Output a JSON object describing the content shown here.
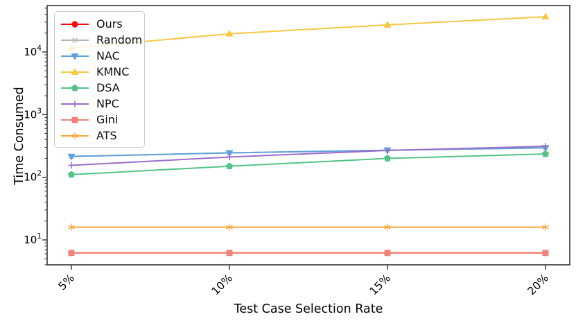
{
  "chart_data": {
    "type": "line",
    "title": "",
    "xlabel": "Test Case Selection Rate",
    "ylabel": "Time Consumed",
    "categories": [
      "5%",
      "10%",
      "15%",
      "20%"
    ],
    "yscale": "log",
    "ylim": [
      4,
      55000
    ],
    "y_major_ticks": [
      10,
      100,
      1000,
      10000
    ],
    "y_tick_exponents": [
      "1",
      "2",
      "3",
      "4"
    ],
    "y_tick_mantissa": "10",
    "grid": false,
    "legend_position": "upper-left",
    "axis_color": "#333333",
    "series": [
      {
        "name": "Ours",
        "color": "#f50d0d",
        "marker": "circle",
        "values": [
          6.2,
          6.2,
          6.2,
          6.2
        ]
      },
      {
        "name": "Random",
        "color": "#b5b5b5",
        "marker": "x",
        "values": [
          215,
          245,
          270,
          295
        ]
      },
      {
        "name": "NAC",
        "color": "#5fa2dc",
        "marker": "triangle-down",
        "values": [
          215,
          245,
          270,
          295
        ]
      },
      {
        "name": "KMNC",
        "color": "#f6c844",
        "marker": "triangle-up",
        "values": [
          11500,
          19500,
          27000,
          36500
        ]
      },
      {
        "name": "DSA",
        "color": "#55c387",
        "marker": "pentagon",
        "values": [
          110,
          150,
          200,
          235
        ]
      },
      {
        "name": "NPC",
        "color": "#9b6ec8",
        "marker": "plus",
        "values": [
          155,
          210,
          268,
          312
        ]
      },
      {
        "name": "Gini",
        "color": "#f0827a",
        "marker": "square",
        "values": [
          6.2,
          6.2,
          6.2,
          6.2
        ]
      },
      {
        "name": "ATS",
        "color": "#faa43a",
        "marker": "star",
        "values": [
          16,
          16,
          16,
          16
        ]
      }
    ]
  }
}
